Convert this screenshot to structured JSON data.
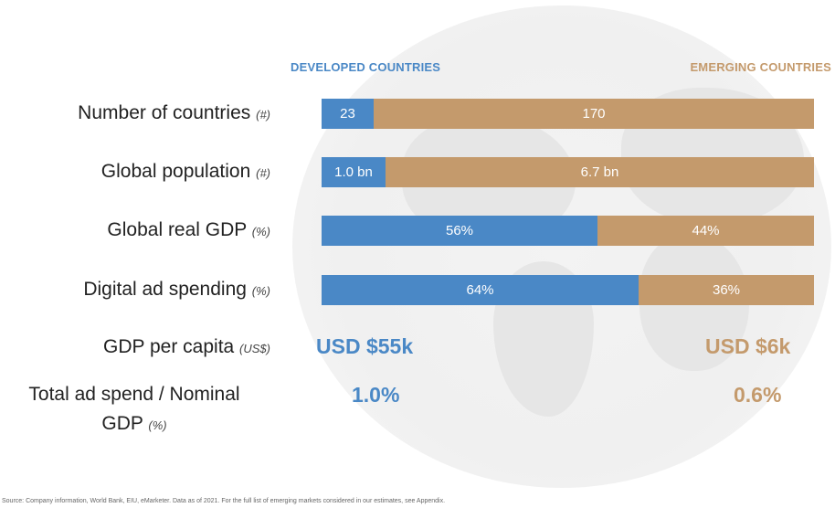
{
  "legend": {
    "developed": "DEVELOPED COUNTRIES",
    "emerging": "EMERGING COUNTRIES"
  },
  "colors": {
    "developed": "#4a88c6",
    "emerging": "#c49a6c"
  },
  "rows": [
    {
      "label": "Number of countries",
      "unit": "(#)",
      "developed_label": "23",
      "emerging_label": "170"
    },
    {
      "label": "Global population",
      "unit": "(#)",
      "developed_label": "1.0 bn",
      "emerging_label": "6.7 bn"
    },
    {
      "label": "Global real GDP",
      "unit": "(%)",
      "developed_label": "56%",
      "emerging_label": "44%"
    },
    {
      "label": "Digital ad spending",
      "unit": "(%)",
      "developed_label": "64%",
      "emerging_label": "36%"
    }
  ],
  "metrics": [
    {
      "label": "GDP per capita",
      "unit": "(US$)",
      "developed": "USD $55k",
      "emerging": "USD $6k"
    },
    {
      "label_line1": "Total ad spend / Nominal",
      "label_line2": "GDP",
      "unit": "(%)",
      "developed": "1.0%",
      "emerging": "0.6%"
    }
  ],
  "source": "Source: Company information, World Bank, EIU, eMarketer. Data as of 2021. For the full list of emerging markets considered in our estimates, see Appendix.",
  "chart_data": {
    "type": "bar",
    "stacked": true,
    "orientation": "horizontal",
    "normalized": true,
    "categories": [
      "Number of countries",
      "Global population",
      "Global real GDP",
      "Digital ad spending"
    ],
    "series": [
      {
        "name": "DEVELOPED COUNTRIES",
        "values": [
          23,
          1.0,
          56,
          64
        ]
      },
      {
        "name": "EMERGING COUNTRIES",
        "values": [
          170,
          6.7,
          44,
          36
        ]
      }
    ]
  }
}
